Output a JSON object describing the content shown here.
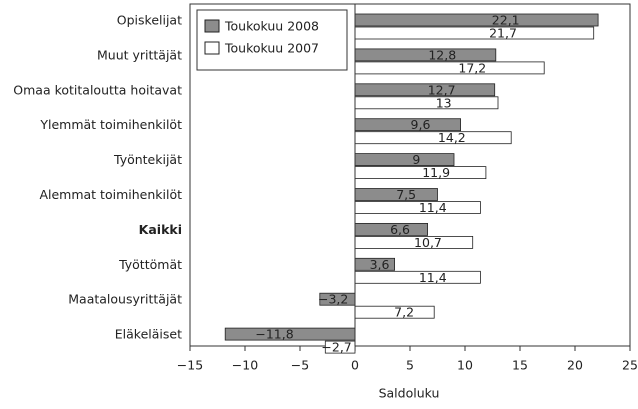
{
  "chart_data": {
    "type": "bar",
    "orientation": "horizontal",
    "x_label": "Saldoluku",
    "categories": [
      "Opiskelijat",
      "Muut yrittäjät",
      "Omaa kotitaloutta hoitavat",
      "Ylemmät toimihenkilöt",
      "Työntekijät",
      "Alemmat toimihenkilöt",
      "Kaikki",
      "Työttömät",
      "Maatalousyrittäjät",
      "Eläkeläiset"
    ],
    "bold_categories": [
      6
    ],
    "series": [
      {
        "name": "Toukokuu 2008",
        "color": "#8c8c8c",
        "values": [
          22.1,
          12.8,
          12.7,
          9.6,
          9,
          7.5,
          6.6,
          3.6,
          -3.2,
          -11.8
        ],
        "value_labels": [
          "22,1",
          "12,8",
          "12,7",
          "9,6",
          "9",
          "7,5",
          "6,6",
          "3,6",
          "−3,2",
          "−11,8"
        ]
      },
      {
        "name": "Toukokuu 2007",
        "color": "#ffffff",
        "values": [
          21.7,
          17.2,
          13,
          14.2,
          11.9,
          11.4,
          10.7,
          11.4,
          7.2,
          -2.7
        ],
        "value_labels": [
          "21,7",
          "17,2",
          "13",
          "14,2",
          "11,9",
          "11,4",
          "10,7",
          "11,4",
          "7,2",
          "−2,7"
        ]
      }
    ],
    "xlim": [
      -15,
      25
    ],
    "xticks": [
      {
        "value": -15,
        "label": "−15"
      },
      {
        "value": -10,
        "label": "−10"
      },
      {
        "value": -5,
        "label": "−5"
      },
      0,
      5,
      10,
      15,
      20,
      25
    ],
    "legend": "upper left",
    "grid": false
  }
}
